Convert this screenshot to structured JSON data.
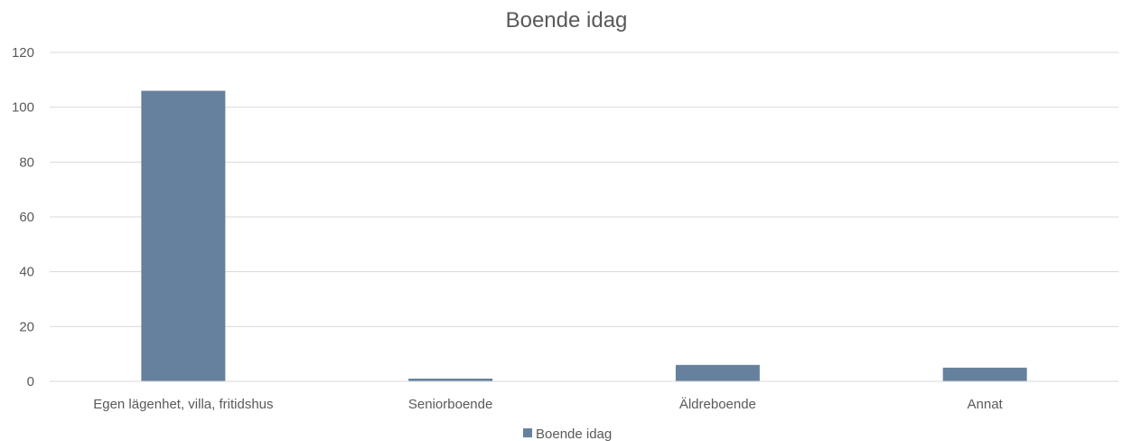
{
  "chart_data": {
    "type": "bar",
    "title": "Boende idag",
    "xlabel": "",
    "ylabel": "",
    "categories": [
      "Egen lägenhet, villa, fritidshus",
      "Seniorboende",
      "Äldreboende",
      "Annat"
    ],
    "series": [
      {
        "name": "Boende idag",
        "values": [
          106,
          1,
          6,
          5
        ],
        "color": "#66819e"
      }
    ],
    "ylim": [
      0,
      120
    ],
    "yticks": [
      "0",
      "20",
      "40",
      "60",
      "80",
      "100",
      "120"
    ],
    "grid": true,
    "legend_position": "bottom"
  }
}
